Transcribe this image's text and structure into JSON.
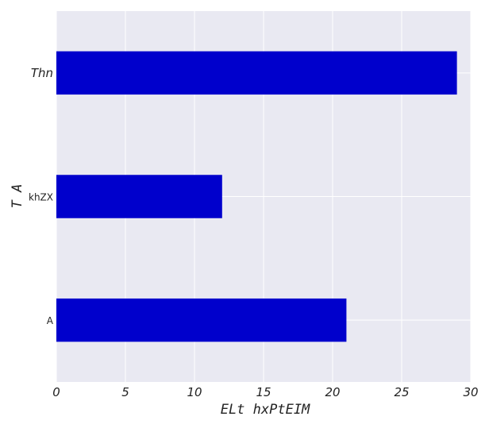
{
  "chart_data": {
    "type": "bar",
    "orientation": "horizontal",
    "categories": [
      "Thn",
      "khZX",
      "A"
    ],
    "values": [
      29,
      12,
      21
    ],
    "xlabel": "ELt hxPtEIM",
    "ylabel": "T A",
    "xlim": [
      0,
      30
    ],
    "x_ticks": [
      "0",
      "5",
      "10",
      "15",
      "20",
      "25",
      "30"
    ],
    "grid": true,
    "bar_color": "#0000cc",
    "background_color": "#e9e9f2"
  }
}
